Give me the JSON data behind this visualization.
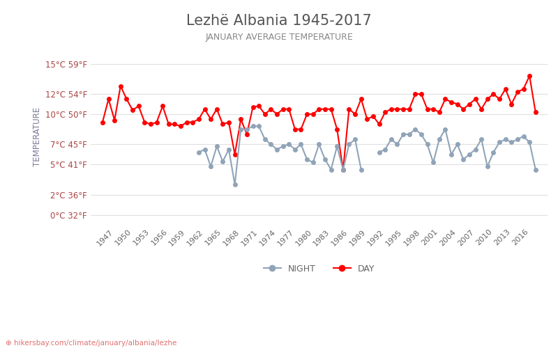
{
  "title": "Lezhë Albania 1945-2017",
  "subtitle": "JANUARY AVERAGE TEMPERATURE",
  "ylabel": "TEMPERATURE",
  "background_color": "#ffffff",
  "grid_color": "#e0e0e0",
  "title_color": "#555555",
  "subtitle_color": "#888888",
  "ylabel_color": "#7a7a9a",
  "ytick_color": "#aa4444",
  "watermark": "hikersbay.com/climate/january/albania/lezhe",
  "years": [
    1945,
    1946,
    1947,
    1948,
    1949,
    1950,
    1951,
    1952,
    1953,
    1954,
    1955,
    1956,
    1957,
    1958,
    1959,
    1960,
    1961,
    1962,
    1963,
    1964,
    1965,
    1966,
    1967,
    1968,
    1969,
    1970,
    1971,
    1972,
    1973,
    1974,
    1975,
    1976,
    1977,
    1978,
    1979,
    1980,
    1981,
    1982,
    1983,
    1984,
    1985,
    1986,
    1987,
    1988,
    1989,
    1990,
    1991,
    1992,
    1993,
    1994,
    1995,
    1996,
    1997,
    1998,
    1999,
    2000,
    2001,
    2002,
    2003,
    2004,
    2005,
    2006,
    2007,
    2008,
    2009,
    2010,
    2011,
    2012,
    2013,
    2014,
    2015,
    2016,
    2017
  ],
  "day_temps": [
    9.2,
    11.5,
    9.4,
    12.8,
    11.5,
    10.4,
    10.8,
    9.2,
    9.0,
    9.2,
    10.8,
    9.0,
    9.0,
    8.8,
    9.2,
    9.2,
    9.5,
    10.5,
    9.5,
    10.5,
    9.0,
    9.2,
    6.0,
    9.5,
    8.0,
    10.7,
    10.8,
    10.0,
    10.5,
    10.0,
    10.5,
    10.5,
    8.5,
    8.5,
    10.0,
    10.0,
    10.5,
    10.5,
    10.5,
    8.5,
    4.5,
    10.5,
    10.0,
    11.5,
    9.5,
    9.8,
    9.0,
    10.2,
    10.5,
    10.5,
    10.5,
    10.5,
    12.0,
    12.0,
    10.5,
    10.5,
    10.2,
    11.5,
    11.2,
    11.0,
    10.5,
    11.0,
    11.5,
    10.5,
    11.5,
    12.0,
    11.5,
    12.5,
    11.0,
    12.2,
    12.5,
    13.8,
    10.2
  ],
  "night_temps": [
    null,
    null,
    null,
    null,
    null,
    null,
    null,
    null,
    null,
    null,
    null,
    null,
    null,
    null,
    null,
    null,
    6.2,
    6.5,
    4.8,
    6.8,
    5.3,
    6.5,
    3.0,
    8.5,
    8.5,
    8.8,
    8.8,
    7.5,
    7.0,
    6.5,
    6.8,
    7.0,
    6.5,
    7.0,
    5.5,
    5.2,
    7.0,
    5.5,
    4.5,
    6.8,
    4.5,
    7.0,
    7.5,
    4.5,
    null,
    null,
    6.2,
    6.5,
    7.5,
    7.0,
    8.0,
    8.0,
    8.5,
    8.0,
    7.0,
    5.2,
    7.5,
    8.5,
    6.0,
    7.0,
    5.5,
    6.0,
    6.5,
    7.5,
    4.8,
    6.2,
    7.2,
    7.5,
    7.2,
    7.5,
    7.8,
    7.2,
    4.5
  ],
  "day_color": "#ff0000",
  "night_color": "#90a4b8",
  "marker_size": 4,
  "line_width": 1.5,
  "yticks_c": [
    0,
    2,
    5,
    7,
    10,
    12,
    15
  ],
  "ytick_labels": [
    "0°C 32°F",
    "2°C 36°F",
    "5°C 41°F",
    "7°C 45°F",
    "10°C 50°F",
    "12°C 54°F",
    "15°C 59°F"
  ],
  "ymin": -1,
  "ymax": 16.5
}
